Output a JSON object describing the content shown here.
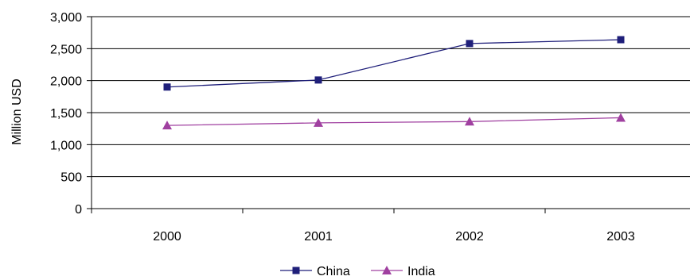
{
  "chart_data": {
    "type": "line",
    "categories": [
      "2000",
      "2001",
      "2002",
      "2003"
    ],
    "series": [
      {
        "name": "China",
        "values": [
          1900,
          2010,
          2580,
          2640
        ],
        "color": "#1f1f7a",
        "marker": "square"
      },
      {
        "name": "India",
        "values": [
          1300,
          1340,
          1360,
          1420
        ],
        "color": "#a040a0",
        "marker": "triangle"
      }
    ],
    "title": "",
    "xlabel": "",
    "ylabel": "Million USD",
    "ylim": [
      0,
      3000
    ],
    "yticks": [
      0,
      500,
      1000,
      1500,
      2000,
      2500,
      3000
    ],
    "ytick_labels": [
      "0",
      "500",
      "1,000",
      "1,500",
      "2,000",
      "2,500",
      "3,000"
    ],
    "grid": true,
    "legend_position": "bottom"
  }
}
